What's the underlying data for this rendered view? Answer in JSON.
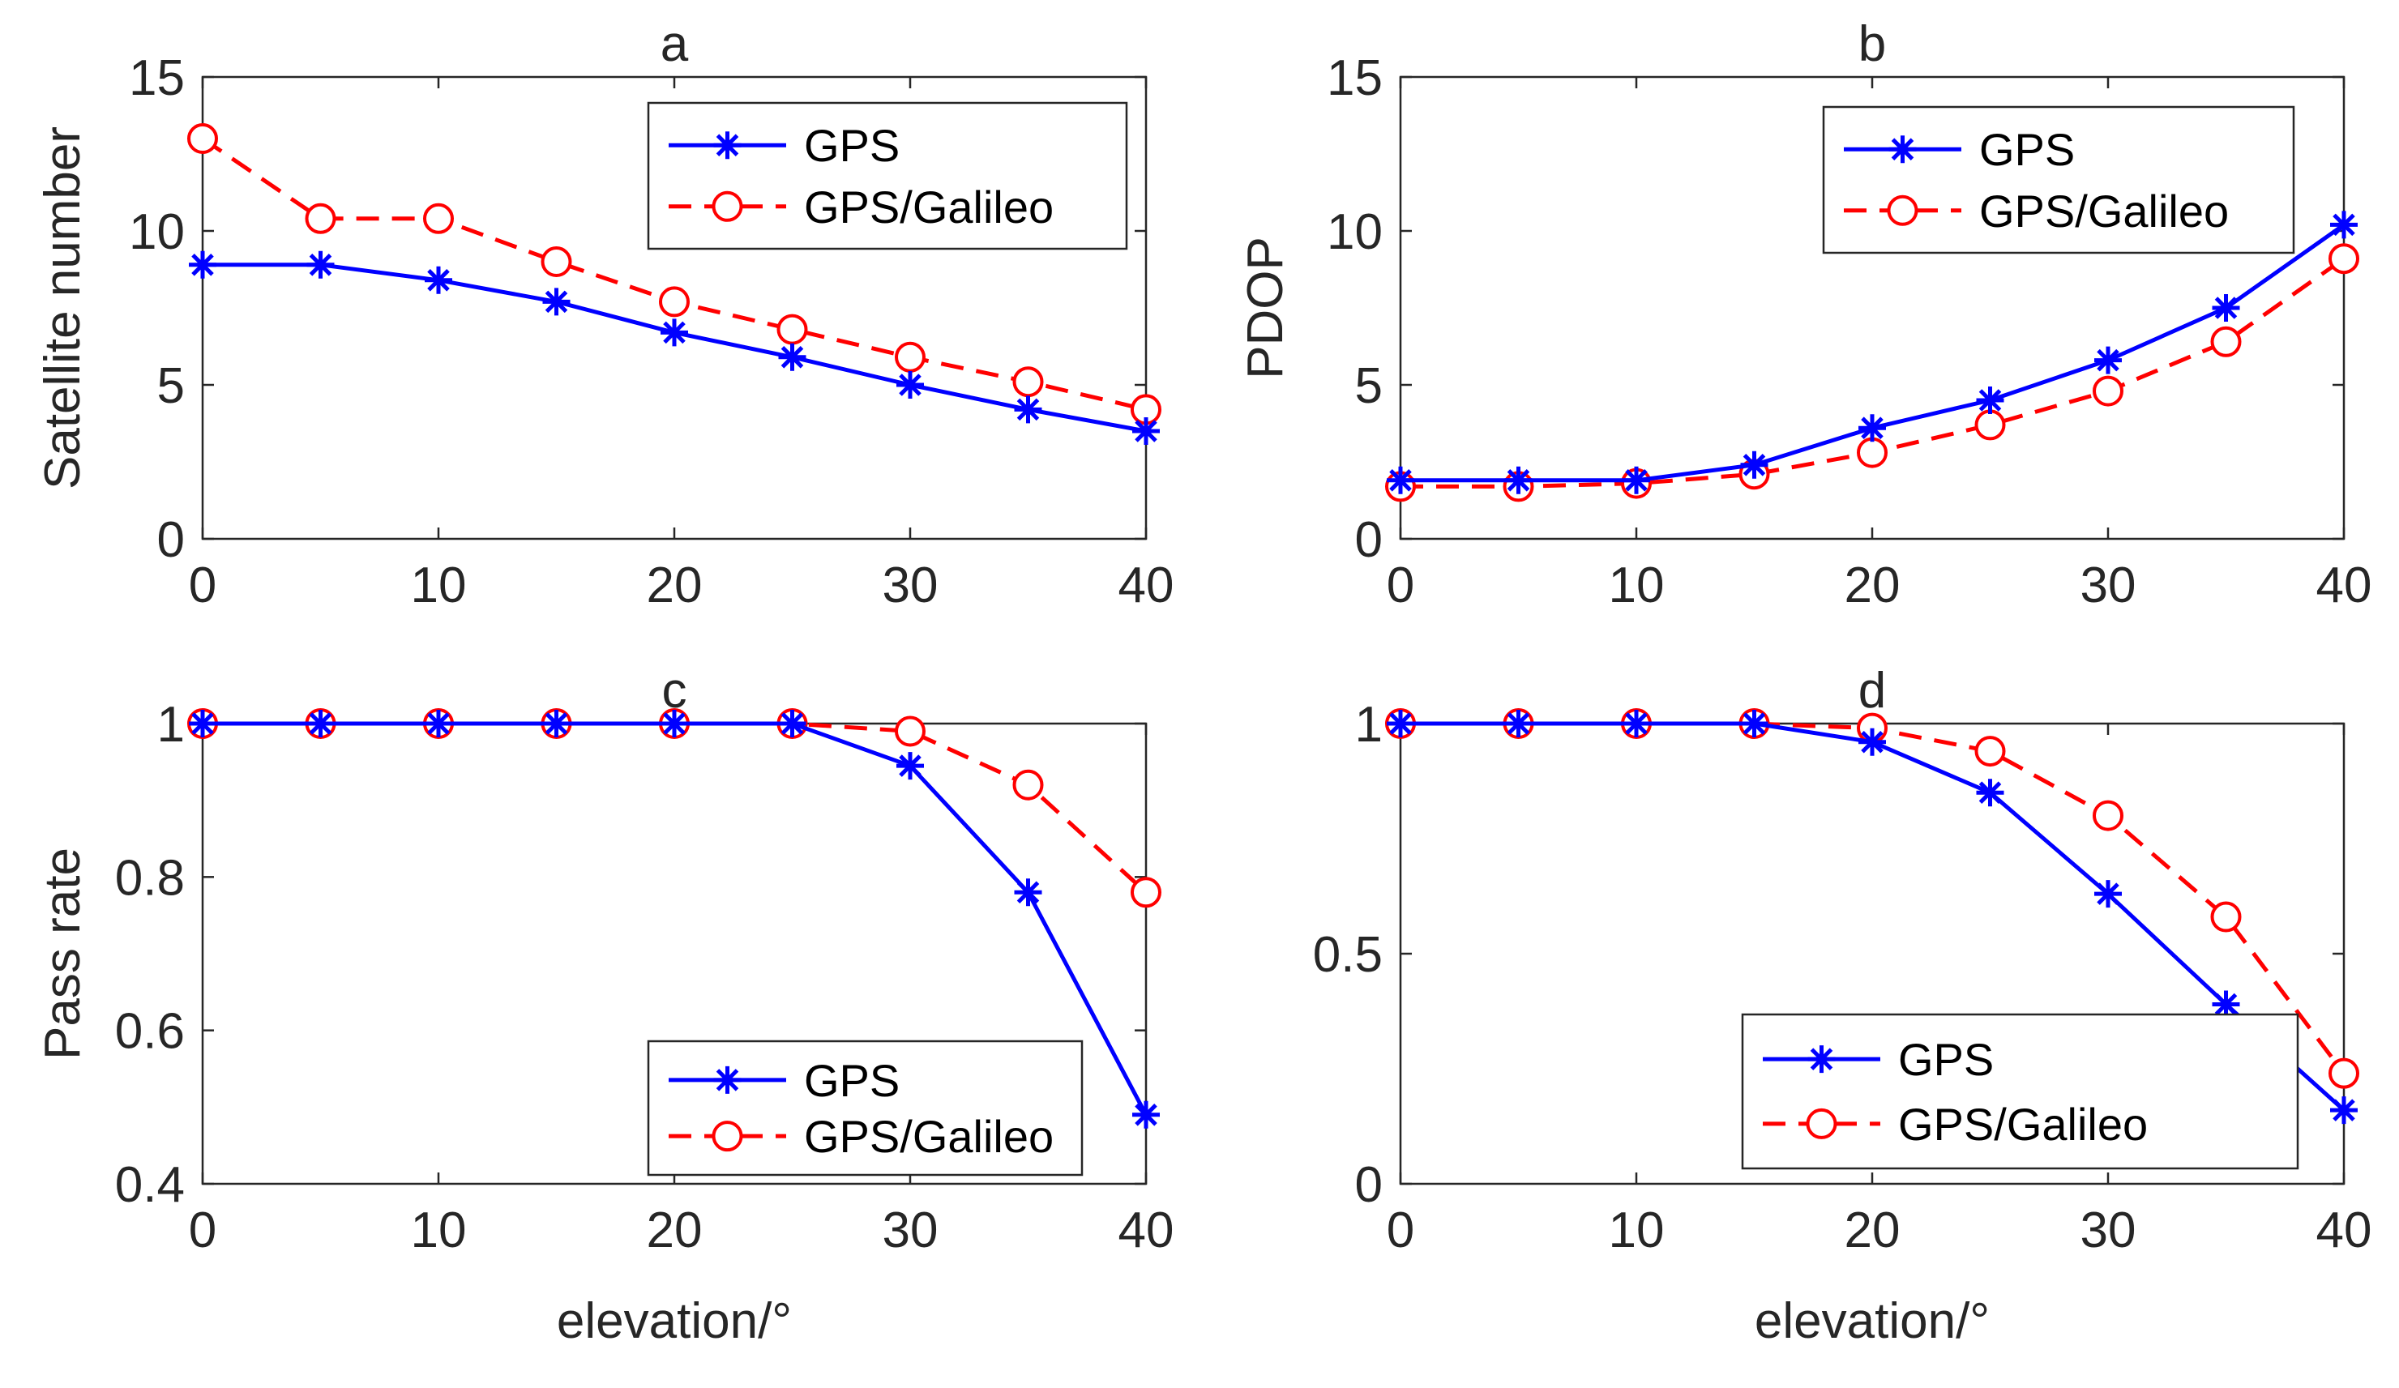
{
  "colors": {
    "gps": "#0000ff",
    "galileo": "#ff0000",
    "axis": "#262626"
  },
  "chart_data": [
    {
      "type": "line",
      "title": "a",
      "xlabel": "",
      "ylabel": "Satellite number",
      "x": [
        0,
        5,
        10,
        15,
        20,
        25,
        30,
        35,
        40
      ],
      "xlim": [
        0,
        40
      ],
      "ylim": [
        0,
        15
      ],
      "xticks": [
        0,
        10,
        20,
        30,
        40
      ],
      "yticks": [
        0,
        5,
        10,
        15
      ],
      "xtick_labels": [
        "0",
        "10",
        "20",
        "30",
        "40"
      ],
      "ytick_labels": [
        "0",
        "5",
        "10",
        "15"
      ],
      "grid": false,
      "legend_position": "top-right",
      "series": [
        {
          "name": "GPS",
          "marker": "asterisk",
          "line": "solid",
          "values": [
            8.9,
            8.9,
            8.4,
            7.7,
            6.7,
            5.9,
            5.0,
            4.2,
            3.5
          ]
        },
        {
          "name": "GPS/Galileo",
          "marker": "circle",
          "line": "dashed",
          "values": [
            13.0,
            10.4,
            10.4,
            9.0,
            7.7,
            6.8,
            5.9,
            5.1,
            4.2
          ]
        }
      ]
    },
    {
      "type": "line",
      "title": "b",
      "xlabel": "",
      "ylabel": "PDOP",
      "x": [
        0,
        5,
        10,
        15,
        20,
        25,
        30,
        35,
        40
      ],
      "xlim": [
        0,
        40
      ],
      "ylim": [
        0,
        15
      ],
      "xticks": [
        0,
        10,
        20,
        30,
        40
      ],
      "yticks": [
        0,
        5,
        10,
        15
      ],
      "xtick_labels": [
        "0",
        "10",
        "20",
        "30",
        "40"
      ],
      "ytick_labels": [
        "0",
        "5",
        "10",
        "15"
      ],
      "grid": false,
      "legend_position": "top-right",
      "series": [
        {
          "name": "GPS",
          "marker": "asterisk",
          "line": "solid",
          "values": [
            1.9,
            1.9,
            1.9,
            2.4,
            3.6,
            4.5,
            5.8,
            7.5,
            10.2
          ]
        },
        {
          "name": "GPS/Galileo",
          "marker": "circle",
          "line": "dashed",
          "values": [
            1.7,
            1.7,
            1.8,
            2.1,
            2.8,
            3.7,
            4.8,
            6.4,
            9.1
          ]
        }
      ]
    },
    {
      "type": "line",
      "title": "c",
      "xlabel": "elevation/°",
      "ylabel": "Pass rate",
      "x": [
        0,
        5,
        10,
        15,
        20,
        25,
        30,
        35,
        40
      ],
      "xlim": [
        0,
        40
      ],
      "ylim": [
        0.4,
        1.0
      ],
      "xticks": [
        0,
        10,
        20,
        30,
        40
      ],
      "yticks": [
        0.4,
        0.6,
        0.8,
        1.0
      ],
      "xtick_labels": [
        "0",
        "10",
        "20",
        "30",
        "40"
      ],
      "ytick_labels": [
        "0.4",
        "0.6",
        "0.8",
        "1"
      ],
      "grid": false,
      "legend_position": "bottom-right",
      "series": [
        {
          "name": "GPS",
          "marker": "asterisk",
          "line": "solid",
          "values": [
            1.0,
            1.0,
            1.0,
            1.0,
            1.0,
            1.0,
            0.945,
            0.78,
            0.49
          ]
        },
        {
          "name": "GPS/Galileo",
          "marker": "circle",
          "line": "dashed",
          "values": [
            1.0,
            1.0,
            1.0,
            1.0,
            1.0,
            1.0,
            0.99,
            0.92,
            0.78
          ]
        }
      ]
    },
    {
      "type": "line",
      "title": "d",
      "xlabel": "elevation/°",
      "ylabel": "",
      "x": [
        0,
        5,
        10,
        15,
        20,
        25,
        30,
        35,
        40
      ],
      "xlim": [
        0,
        40
      ],
      "ylim": [
        0,
        1.0
      ],
      "xticks": [
        0,
        10,
        20,
        30,
        40
      ],
      "yticks": [
        0,
        0.5,
        1.0
      ],
      "xtick_labels": [
        "0",
        "10",
        "20",
        "30",
        "40"
      ],
      "ytick_labels": [
        "0",
        "0.5",
        "1"
      ],
      "grid": false,
      "legend_position": "bottom-right",
      "series": [
        {
          "name": "GPS",
          "marker": "asterisk",
          "line": "solid",
          "values": [
            1.0,
            1.0,
            1.0,
            1.0,
            0.96,
            0.85,
            0.63,
            0.39,
            0.16
          ]
        },
        {
          "name": "GPS/Galileo",
          "marker": "circle",
          "line": "dashed",
          "values": [
            1.0,
            1.0,
            1.0,
            1.0,
            0.99,
            0.94,
            0.8,
            0.58,
            0.24
          ]
        }
      ]
    }
  ]
}
